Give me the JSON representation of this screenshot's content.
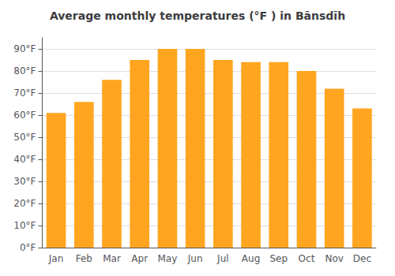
{
  "chart_data": {
    "type": "bar",
    "title": "Average monthly temperatures (°F ) in Bānsdīh",
    "categories": [
      "Jan",
      "Feb",
      "Mar",
      "Apr",
      "May",
      "Jun",
      "Jul",
      "Aug",
      "Sep",
      "Oct",
      "Nov",
      "Dec"
    ],
    "values": [
      61,
      66,
      76,
      85,
      90,
      90,
      85,
      84,
      84,
      80,
      72,
      63
    ],
    "color": "#FFA520",
    "ylim": [
      0,
      95
    ],
    "yticks": [
      {
        "value": 0,
        "label": "0°F"
      },
      {
        "value": 10,
        "label": "10°F"
      },
      {
        "value": 20,
        "label": "20°F"
      },
      {
        "value": 30,
        "label": "30°F"
      },
      {
        "value": 40,
        "label": "40°F"
      },
      {
        "value": 50,
        "label": "50°F"
      },
      {
        "value": 60,
        "label": "60°F"
      },
      {
        "value": 70,
        "label": "70°F"
      },
      {
        "value": 80,
        "label": "80°F"
      },
      {
        "value": 90,
        "label": "90°F"
      }
    ],
    "grid": true
  }
}
